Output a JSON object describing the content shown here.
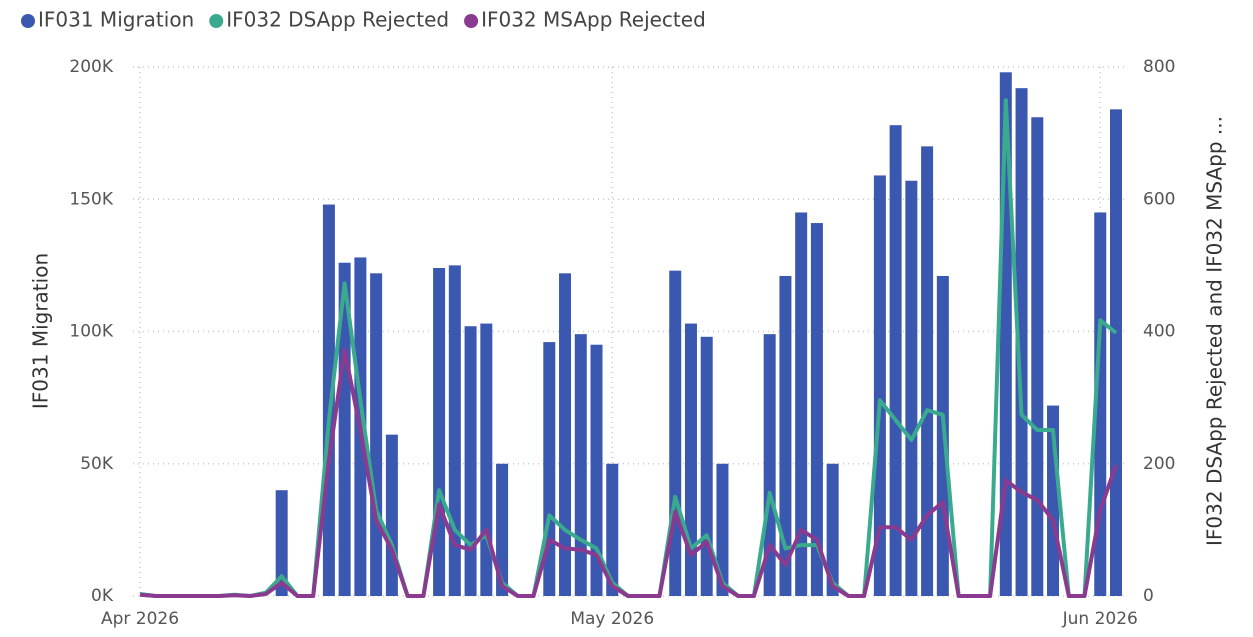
{
  "chart_data": {
    "type": "bar-line",
    "categories": [
      "Apr 2026",
      null,
      null,
      null,
      null,
      null,
      null,
      null,
      null,
      null,
      null,
      null,
      null,
      null,
      null,
      null,
      null,
      null,
      null,
      null,
      null,
      null,
      null,
      null,
      null,
      null,
      null,
      null,
      null,
      null,
      "May 2026",
      null,
      null,
      null,
      null,
      null,
      null,
      null,
      null,
      null,
      null,
      null,
      null,
      null,
      null,
      null,
      null,
      null,
      null,
      null,
      null,
      null,
      null,
      null,
      null,
      null,
      null,
      null,
      null,
      null,
      null,
      "Jun 2026",
      null
    ],
    "series": [
      {
        "name": "IF031 Migration",
        "color": "#3a58b0",
        "kind": "bar",
        "axis": "y",
        "values": [
          0,
          0,
          0,
          0,
          0,
          0,
          0,
          0,
          0,
          40000,
          0,
          0,
          148000,
          126000,
          128000,
          122000,
          61000,
          0,
          0,
          124000,
          125000,
          102000,
          103000,
          50000,
          0,
          0,
          96000,
          122000,
          99000,
          95000,
          50000,
          0,
          0,
          0,
          123000,
          103000,
          98000,
          50000,
          0,
          0,
          99000,
          121000,
          145000,
          141000,
          50000,
          0,
          0,
          159000,
          178000,
          157000,
          170000,
          121000,
          0,
          0,
          0,
          198000,
          192000,
          181000,
          72000,
          0,
          0,
          145000,
          184000
        ]
      },
      {
        "name": "IF032 DSApp Rejected",
        "color": "#3aaa8e",
        "kind": "line",
        "axis": "y2",
        "values": [
          3,
          0,
          0,
          0,
          0,
          0,
          2,
          0,
          5,
          30,
          0,
          0,
          266,
          473,
          296,
          130,
          77,
          0,
          0,
          160,
          100,
          77,
          92,
          20,
          0,
          0,
          122,
          100,
          85,
          72,
          20,
          0,
          0,
          0,
          150,
          72,
          92,
          20,
          0,
          0,
          156,
          72,
          77,
          77,
          20,
          0,
          0,
          296,
          266,
          236,
          281,
          274,
          0,
          0,
          0,
          750,
          274,
          251,
          251,
          0,
          0,
          417,
          398
        ]
      },
      {
        "name": "IF032 MSApp Rejected",
        "color": "#8a3b8f",
        "kind": "line",
        "axis": "y2",
        "values": [
          2,
          0,
          0,
          0,
          0,
          0,
          1,
          0,
          3,
          20,
          0,
          0,
          205,
          372,
          251,
          115,
          70,
          0,
          0,
          138,
          77,
          70,
          100,
          15,
          0,
          0,
          85,
          72,
          70,
          62,
          15,
          0,
          0,
          0,
          127,
          62,
          82,
          15,
          0,
          0,
          77,
          47,
          100,
          85,
          15,
          0,
          0,
          104,
          104,
          85,
          122,
          142,
          0,
          0,
          0,
          175,
          157,
          145,
          115,
          0,
          0,
          130,
          198
        ]
      }
    ],
    "ylabel": "IF031 Migration",
    "y2label": "IF032 DSApp Rejected and IF032 MSApp ...",
    "ylim": [
      0,
      200000
    ],
    "yticks": [
      {
        "value": 0,
        "label": "0K"
      },
      {
        "value": 50000,
        "label": "50K"
      },
      {
        "value": 100000,
        "label": "100K"
      },
      {
        "value": 150000,
        "label": "150K"
      },
      {
        "value": 200000,
        "label": "200K"
      }
    ],
    "y2lim": [
      0,
      800
    ],
    "y2ticks": [
      0,
      200,
      400,
      600,
      800
    ],
    "grid": true,
    "legend": "top-left"
  }
}
